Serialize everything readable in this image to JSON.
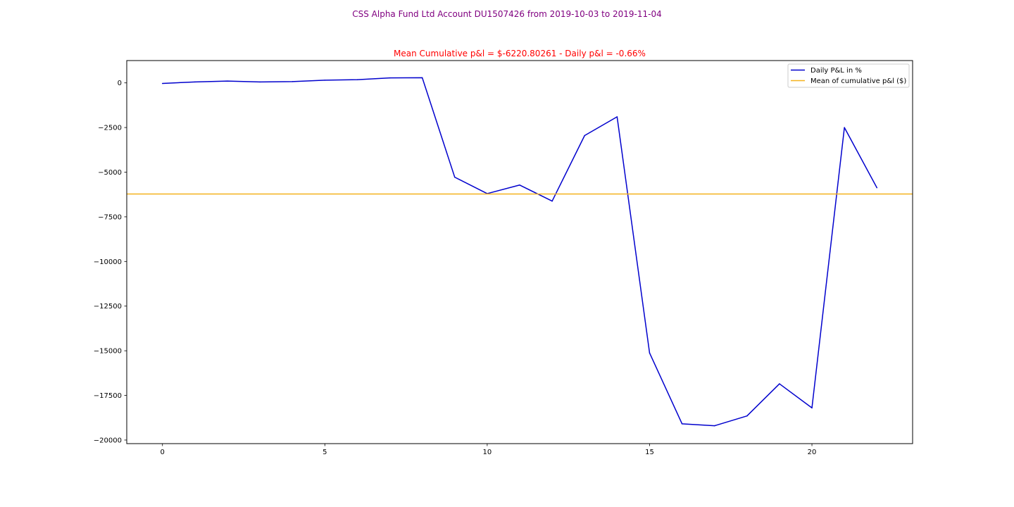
{
  "figure": {
    "suptitle": "CSS Alpha Fund Ltd Account DU1507426   from 2019-10-03 to 2019-11-04"
  },
  "chart_data": {
    "type": "line",
    "title": "Mean Cumulative p&l = $-6220.80261 - Daily p&l = -0.66%",
    "xlabel": "",
    "ylabel": "",
    "xlim": [
      -1.1,
      23.1
    ],
    "ylim": [
      -20200,
      1250
    ],
    "xticks": [
      0,
      5,
      10,
      15,
      20
    ],
    "yticks": [
      0,
      -2500,
      -5000,
      -7500,
      -10000,
      -12500,
      -15000,
      -17500,
      -20000
    ],
    "ytick_labels": [
      "0",
      "−2500",
      "−5000",
      "−7500",
      "−10000",
      "−12500",
      "−15000",
      "−17500",
      "−20000"
    ],
    "grid": false,
    "legend_position": "top-right",
    "series": [
      {
        "name": "Daily P&L in %",
        "color": "#0000cd",
        "kind": "line",
        "x": [
          0,
          1,
          2,
          3,
          4,
          5,
          6,
          7,
          8,
          9,
          10,
          11,
          12,
          13,
          14,
          15,
          16,
          17,
          18,
          19,
          20,
          21,
          22
        ],
        "y": [
          -30,
          50,
          100,
          50,
          70,
          150,
          180,
          280,
          290,
          -5280,
          -6200,
          -5720,
          -6620,
          -2950,
          -1900,
          -15120,
          -19090,
          -19200,
          -18650,
          -16850,
          -18200,
          -2500,
          -5870
        ]
      },
      {
        "name": "Mean of cumulative p&l ($)",
        "color": "#f5b21e",
        "kind": "hline",
        "y": -6220.80261
      }
    ]
  }
}
